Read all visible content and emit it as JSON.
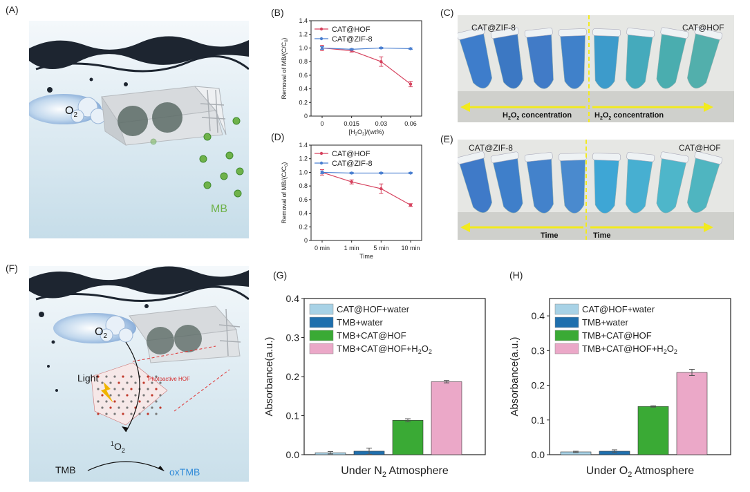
{
  "panels": {
    "A": {
      "label": "(A)",
      "o2": "O",
      "o2_sub": "2",
      "mb": "MB"
    },
    "B": {
      "label": "(B)"
    },
    "C": {
      "label": "(C)",
      "left": "CAT@ZIF-8",
      "right": "CAT@HOF",
      "arrow_left_main": "H",
      "arrow_left_sub": "2",
      "arrow_left_mid": "O",
      "arrow_left_sub2": "2",
      "arrow_left_rest": " concentration",
      "arrow_right_main": "H",
      "arrow_right_sub": "2",
      "arrow_right_mid": "O",
      "arrow_right_sub2": "2",
      "arrow_right_rest": " concentration"
    },
    "D": {
      "label": "(D)"
    },
    "E": {
      "label": "(E)",
      "left": "CAT@ZIF-8",
      "right": "CAT@HOF",
      "arrow_left": "Time",
      "arrow_right": "Time"
    },
    "F": {
      "label": "(F)",
      "o2": "O",
      "o2_sub": "2",
      "light": "Light",
      "hof": "Photoactive HOF",
      "singlet_sup": "1",
      "singlet_main": "O",
      "singlet_sub": "2",
      "tmb": "TMB",
      "oxtmb": "oxTMB"
    },
    "G": {
      "label": "(G)"
    },
    "H": {
      "label": "(H)"
    }
  },
  "colors": {
    "hof_red": "#d6425e",
    "zif_blue": "#4a7fd0",
    "bar1": "#a8d2e6",
    "bar2": "#1f6fad",
    "bar3": "#3aaa35",
    "bar4": "#eba8c8",
    "arrow_yellow": "#f2ea1e",
    "mb_green": "#6fb24a",
    "oxtmb_blue": "#2f8ad8"
  },
  "chart_data": [
    {
      "id": "B",
      "type": "line",
      "categories": [
        "0",
        "0.015",
        "0.03",
        "0.06"
      ],
      "xlabel_pre": "[H",
      "xlabel_sub1": "2",
      "xlabel_mid": "O",
      "xlabel_sub2": "2",
      "xlabel_post": "]/(wt%)",
      "ylabel_pre": "Removal of MB/(C/C",
      "ylabel_sub": "0",
      "ylabel_post": ")",
      "ylim": [
        0,
        1.4
      ],
      "yticks": [
        "0",
        "0.2",
        "0.4",
        "0.6",
        "0.8",
        "1.0",
        "1.2",
        "1.4"
      ],
      "series": [
        {
          "name": "CAT@HOF",
          "values": [
            1.0,
            0.96,
            0.8,
            0.47
          ],
          "err": [
            0.04,
            0.02,
            0.07,
            0.04
          ]
        },
        {
          "name": "CAT@ZIF-8",
          "values": [
            1.0,
            0.98,
            1.0,
            0.99
          ],
          "err": [
            0.02,
            0.01,
            0.01,
            0.01
          ]
        }
      ]
    },
    {
      "id": "D",
      "type": "line",
      "categories": [
        "0 min",
        "1 min",
        "5 min",
        "10 min"
      ],
      "xlabel": "Time",
      "ylabel_pre": "Removal of MB/(C/C",
      "ylabel_sub": "0",
      "ylabel_post": ")",
      "ylim": [
        0,
        1.4
      ],
      "yticks": [
        "0",
        "0.2",
        "0.4",
        "0.6",
        "0.8",
        "1.0",
        "1.2",
        "1.4"
      ],
      "series": [
        {
          "name": "CAT@HOF",
          "values": [
            1.0,
            0.86,
            0.76,
            0.52
          ],
          "err": [
            0.04,
            0.03,
            0.07,
            0.02
          ]
        },
        {
          "name": "CAT@ZIF-8",
          "values": [
            1.0,
            0.99,
            0.99,
            0.99
          ],
          "err": [
            0.02,
            0.01,
            0.01,
            0.01
          ]
        }
      ]
    },
    {
      "id": "G",
      "type": "bar",
      "xlabel_pre": "Under N",
      "xlabel_sub": "2",
      "xlabel_post": " Atmosphere",
      "ylabel": "Absorbance(a.u.)",
      "ylim": [
        0,
        0.4
      ],
      "yticks": [
        "0.0",
        "0.1",
        "0.2",
        "0.3",
        "0.4"
      ],
      "series": [
        {
          "name": "CAT@HOF+water",
          "value": 0.005,
          "err": 0.003
        },
        {
          "name": "TMB+water",
          "value": 0.009,
          "err": 0.008
        },
        {
          "name": "TMB+CAT@HOF",
          "value": 0.088,
          "err": 0.004
        },
        {
          "name_pre": "TMB+CAT@HOF+H",
          "name_sub1": "2",
          "name_mid": "O",
          "name_sub2": "2",
          "value": 0.187,
          "err": 0.003
        }
      ]
    },
    {
      "id": "H",
      "type": "bar",
      "xlabel_pre": "Under O",
      "xlabel_sub": "2",
      "xlabel_post": " Atmosphere",
      "ylabel": "Absorbance(a.u.)",
      "ylim": [
        0,
        0.45
      ],
      "yticks": [
        "0.0",
        "0.1",
        "0.2",
        "0.3",
        "0.4"
      ],
      "series": [
        {
          "name": "CAT@HOF+water",
          "value": 0.008,
          "err": 0.002
        },
        {
          "name": "TMB+water",
          "value": 0.01,
          "err": 0.004
        },
        {
          "name": "TMB+CAT@HOF",
          "value": 0.139,
          "err": 0.002
        },
        {
          "name_pre": "TMB+CAT@HOF+H",
          "name_sub1": "2",
          "name_mid": "O",
          "name_sub2": "2",
          "value": 0.237,
          "err": 0.009
        }
      ]
    }
  ]
}
